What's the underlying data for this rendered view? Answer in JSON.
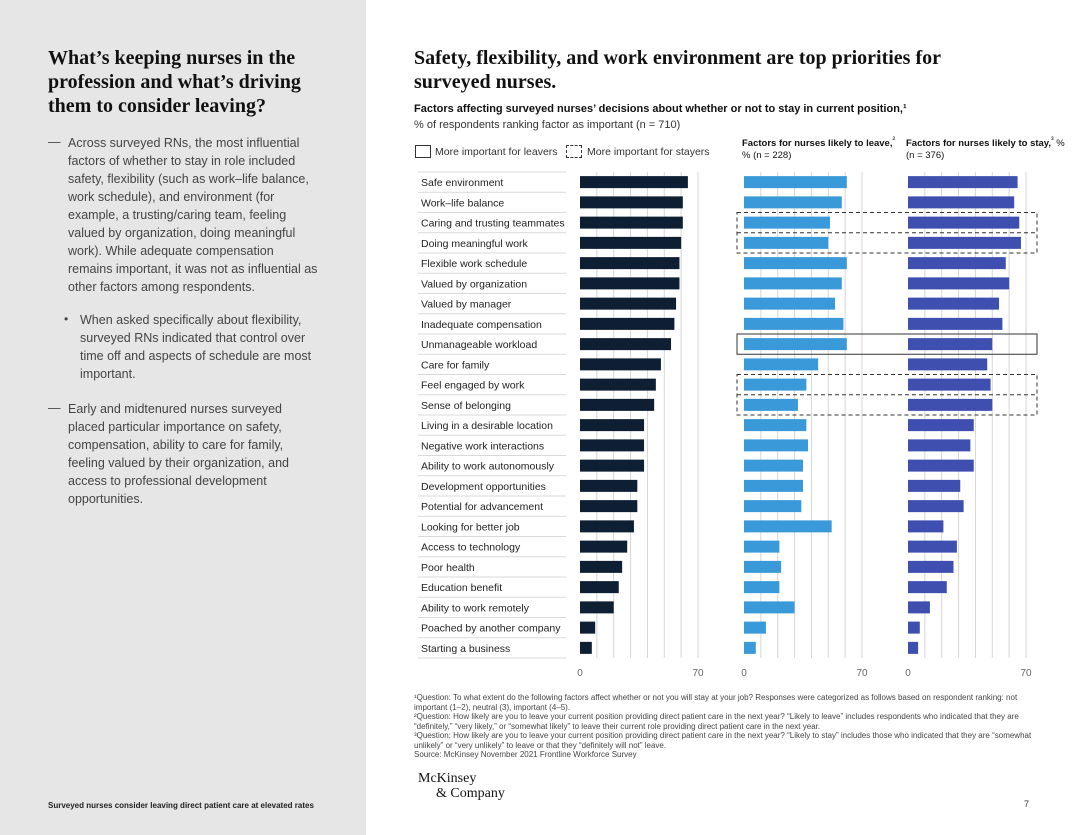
{
  "sidebar": {
    "title": "What’s keeping nurses in the profession and what’s driving them to consider leaving?",
    "dash": "—",
    "bullet": "•",
    "para1": "Across surveyed RNs, the most influential factors of whether to stay in role included safety, flexibility (such as work–life balance, work schedule), and environment (for example, a trusting/caring team, feeling valued by organization, doing meaningful work). While adequate compensation remains important, it was not as influential as other factors among respondents.",
    "para2": "When asked specifically about flexibility, surveyed RNs indicated that control over time off and aspects of schedule are most important.",
    "para3": "Early and midtenured nurses surveyed placed particular importance on safety, compensation, ability to care for family, feeling valued by their organization, and access to professional development opportunities.",
    "footer": "Surveyed nurses consider leaving direct patient care at elevated rates"
  },
  "main": {
    "title": "Safety, flexibility, and work environment are top priorities for surveyed nurses."
  },
  "chart_data": {
    "type": "bar",
    "title": "Factors affecting surveyed nurses’ decisions about whether or not to stay in current position,¹",
    "subtitle": "% of respondents ranking factor as important (n = 710)",
    "legend": {
      "leavers": "More important for leavers",
      "stayers": "More important for stayers"
    },
    "column_heads": [
      {
        "bold": "Factors for nurses likely to leave,",
        "sup": "²",
        "rest": " % (n = 228)"
      },
      {
        "bold": "Factors for nurses likely to stay,",
        "sup": "³",
        "rest": " % (n = 376)"
      }
    ],
    "categories": [
      "Safe environment",
      "Work–life balance",
      "Caring and trusting teammates",
      "Doing meaningful work",
      "Flexible work schedule",
      "Valued by organization",
      "Valued by manager",
      "Inadequate compensation",
      "Unmanageable workload",
      "Care for family",
      "Feel engaged by work",
      "Sense of belonging",
      "Living in a desirable location",
      "Negative work interactions",
      "Ability to work autonomously",
      "Development opportunities",
      "Potential for advancement",
      "Looking for better job",
      "Access to technology",
      "Poor health",
      "Education benefit",
      "Ability to work remotely",
      "Poached by another company",
      "Starting a business"
    ],
    "ylim": [
      0,
      70
    ],
    "x_ticks": [
      "0",
      "70"
    ],
    "series": [
      {
        "name": "All respondents (n = 710)",
        "color": "#0f1f33",
        "values": [
          64,
          61,
          61,
          60,
          59,
          59,
          57,
          56,
          54,
          48,
          45,
          44,
          38,
          38,
          38,
          34,
          34,
          32,
          28,
          25,
          23,
          20,
          9,
          7
        ]
      },
      {
        "name": "Factors for nurses likely to leave",
        "color": "#3a9ad9",
        "values": [
          61,
          58,
          51,
          50,
          61,
          58,
          54,
          59,
          61,
          44,
          37,
          32,
          37,
          38,
          35,
          35,
          34,
          52,
          21,
          22,
          21,
          30,
          13,
          7
        ]
      },
      {
        "name": "Factors for nurses likely to stay",
        "color": "#3f4fb0",
        "values": [
          65,
          63,
          66,
          67,
          58,
          60,
          54,
          56,
          50,
          47,
          49,
          50,
          39,
          37,
          39,
          31,
          33,
          21,
          29,
          27,
          23,
          13,
          7,
          6
        ]
      }
    ],
    "highlight_stayers": [
      "Caring and trusting teammates",
      "Doing meaningful work",
      "Feel engaged by work",
      "Sense of belonging"
    ],
    "highlight_leavers": [
      "Unmanageable workload"
    ]
  },
  "footnotes": [
    "¹Question: To what extent do the following factors affect whether or not you will stay at your job? Responses were categorized as follows based on respondent ranking: not important (1–2), neutral (3), important (4–5).",
    "²Question: How likely are you to leave your current position providing direct patient care in the next year? “Likely to leave” includes respondents who indicated that they are “definitely,” “very likely,” or “somewhat likely” to leave their current role providing direct patient care in the next year.",
    "³Question: How likely are you to leave your current position providing direct patient care in the next year? “Likely to stay” includes those who indicated that they are “somewhat unlikely” or “very unlikely” to leave or that they “definitely will not” leave.",
    "Source: McKinsey November 2021 Frontline Workforce Survey"
  ],
  "logo": {
    "line1": "McKinsey",
    "line2": "& Company"
  },
  "page_number": "7"
}
